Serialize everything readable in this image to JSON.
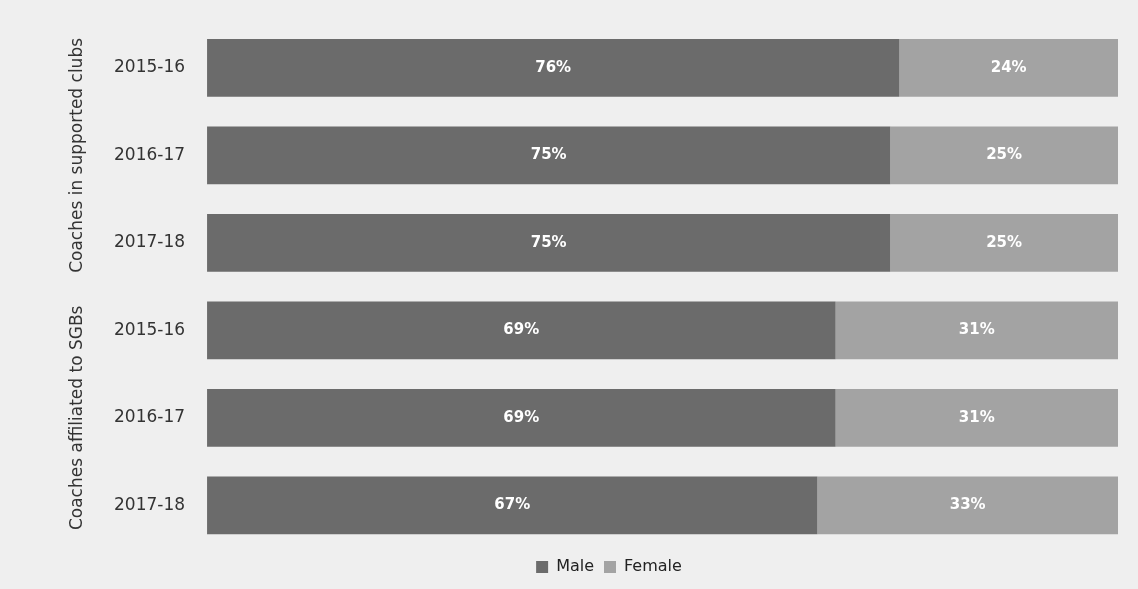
{
  "chart_data": {
    "type": "bar",
    "orientation": "horizontal",
    "stacked": true,
    "categories": [
      "2015-16",
      "2016-17",
      "2017-18",
      "2015-16",
      "2016-17",
      "2017-18"
    ],
    "series": [
      {
        "name": "Male",
        "color": "#6b6b6b",
        "values": [
          76,
          75,
          75,
          69,
          69,
          67
        ],
        "value_labels": [
          "76%",
          "75%",
          "75%",
          "69%",
          "69%",
          "67%"
        ]
      },
      {
        "name": "Female",
        "color": "#a3a3a3",
        "values": [
          24,
          25,
          25,
          31,
          31,
          33
        ],
        "value_labels": [
          "24%",
          "25%",
          "25%",
          "31%",
          "31%",
          "33%"
        ]
      }
    ],
    "xlim": [
      0,
      100
    ],
    "tick_labels": "y",
    "grid": false,
    "legend": "bottom",
    "annotations": [
      "Coaches in supported clubs",
      "Coaches affiliated to SGBs"
    ]
  }
}
